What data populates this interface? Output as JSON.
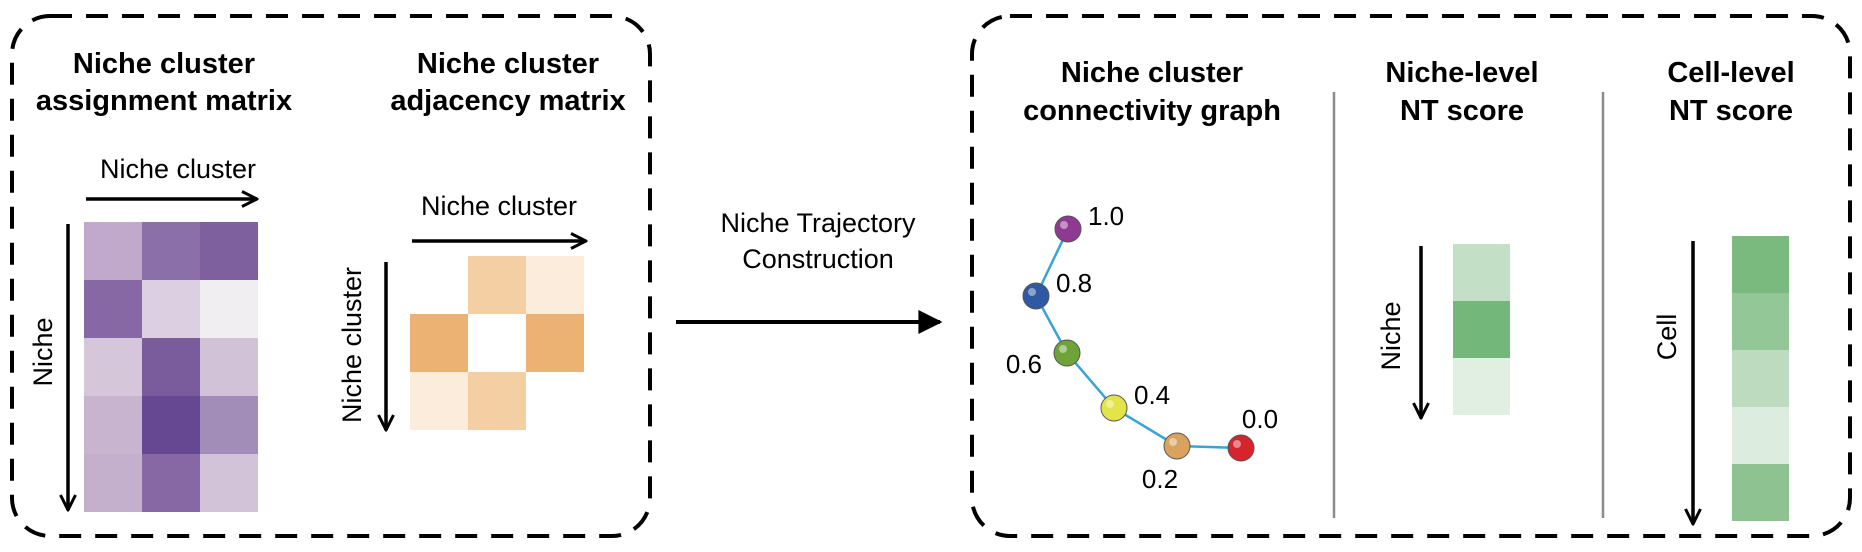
{
  "left_panel": {
    "assignment": {
      "title_line1": "Niche cluster",
      "title_line2": "assignment matrix",
      "col_axis_label": "Niche cluster",
      "row_axis_label": "Niche",
      "cells": [
        [
          "#c1a9cb",
          "#8b6fa8",
          "#7e609e"
        ],
        [
          "#8767a4",
          "#dccfe1",
          "#f0eef1"
        ],
        [
          "#d5c6da",
          "#7a5b9b",
          "#d1c2d8"
        ],
        [
          "#c8b4cf",
          "#664892",
          "#a28db8"
        ],
        [
          "#c4afcd",
          "#8768a5",
          "#d2c3d9"
        ]
      ]
    },
    "adjacency": {
      "title_line1": "Niche cluster",
      "title_line2": "adjacency matrix",
      "col_axis_label": "Niche cluster",
      "row_axis_label": "Niche cluster",
      "cells": [
        [
          "#ffffff",
          "#f3cfa3",
          "#fcecdc"
        ],
        [
          "#ebb273",
          "#ffffff",
          "#ebb273"
        ],
        [
          "#fcecdc",
          "#f3cfa3",
          "#ffffff"
        ]
      ]
    }
  },
  "middle": {
    "arrow_label_line1": "Niche Trajectory",
    "arrow_label_line2": "Construction"
  },
  "right_panel": {
    "graph": {
      "title_line1": "Niche cluster",
      "title_line2": "connectivity graph",
      "edge_color": "#3aa3d6",
      "nodes": [
        {
          "label": "1.0",
          "color": "#8e3a92",
          "label_side": "right"
        },
        {
          "label": "0.8",
          "color": "#2f5aa3",
          "label_side": "right"
        },
        {
          "label": "0.6",
          "color": "#6ea33a",
          "label_side": "left"
        },
        {
          "label": "0.4",
          "color": "#e3e34a",
          "label_side": "right"
        },
        {
          "label": "0.2",
          "color": "#d9a25e",
          "label_side": "below"
        },
        {
          "label": "0.0",
          "color": "#d6242c",
          "label_side": "above"
        }
      ]
    },
    "niche_level": {
      "title_line1": "Niche-level",
      "title_line2": "NT score",
      "axis_label": "Niche",
      "cells": [
        "#c3e0c6",
        "#73b77a",
        "#e0efe1"
      ]
    },
    "cell_level": {
      "title_line1": "Cell-level",
      "title_line2": "NT score",
      "axis_label": "Cell",
      "cells": [
        "#7bba7e",
        "#93c797",
        "#bddbbe",
        "#dcede0",
        "#8ec391"
      ]
    }
  }
}
